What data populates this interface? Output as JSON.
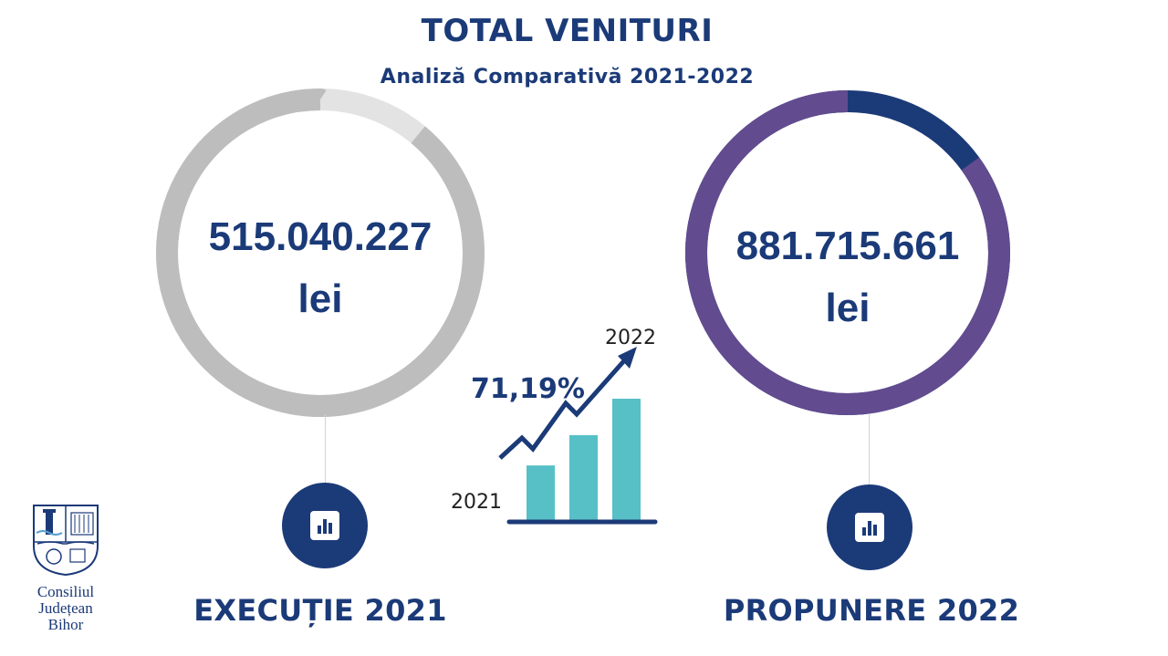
{
  "header": {
    "title": "TOTAL VENITURI",
    "subtitle": "Analiză Comparativă 2021-2022"
  },
  "chart_data": {
    "type": "donut",
    "series": [
      {
        "label": "EXECUȚIE 2021",
        "value_text": "515.040.227",
        "unit": "lei",
        "value": 515040227,
        "filled_fraction": 0.89,
        "colors": {
          "filled": "#bdbdbd",
          "remainder": "#e3e3e3"
        }
      },
      {
        "label": "PROPUNERE 2022",
        "value_text": "881.715.661",
        "unit": "lei",
        "value": 881715661,
        "filled_fraction": 0.85,
        "colors": {
          "filled": "#624b8f",
          "remainder": "#1b3a78"
        }
      }
    ]
  },
  "growth_graphic": {
    "percent": "71,19%",
    "from_year": "2021",
    "to_year": "2022",
    "bar_levels": [
      0.45,
      0.7,
      1.0
    ],
    "colors": {
      "bars": "#57c0c6",
      "arrow": "#1b3a78"
    }
  },
  "logo": {
    "lines": [
      "Consiliul",
      "Județean",
      "Bihor"
    ]
  },
  "icons": {
    "left": "bar-chart-icon",
    "right": "bar-chart-icon"
  },
  "colors": {
    "brand": "#1b3a78",
    "connector": "#d4d4d4"
  }
}
